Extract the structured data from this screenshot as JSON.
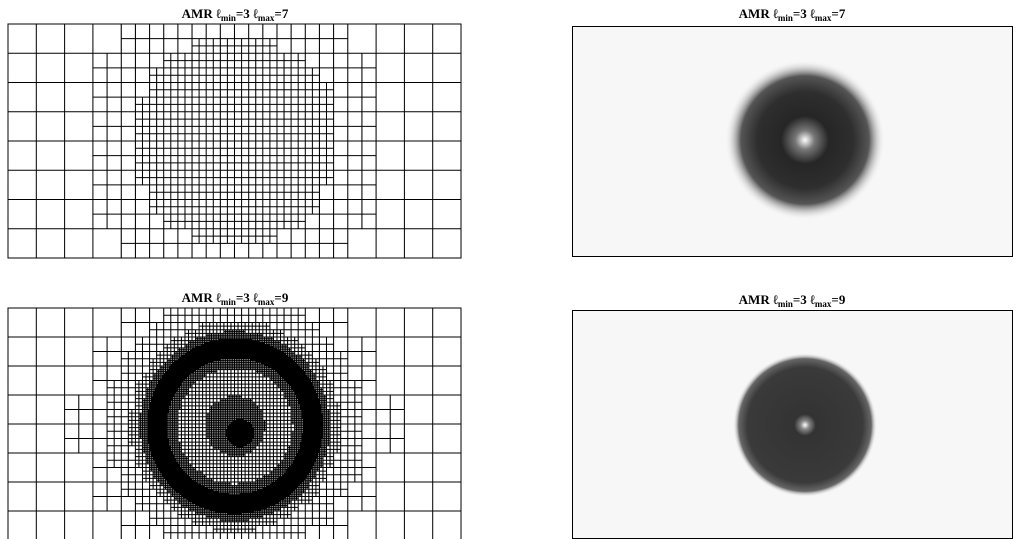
{
  "panels": [
    {
      "title": [
        "AMR ℓ",
        "min",
        "=3 ℓ",
        "max",
        "=7"
      ]
    },
    {
      "title": [
        "AMR ℓ",
        "min",
        "=3 ℓ",
        "max",
        "=7"
      ]
    },
    {
      "title": [
        "AMR ℓ",
        "min",
        "=3 ℓ",
        "max",
        "=9"
      ]
    },
    {
      "title": [
        "AMR ℓ",
        "min",
        "=3 ℓ",
        "max",
        "=9"
      ]
    }
  ]
}
